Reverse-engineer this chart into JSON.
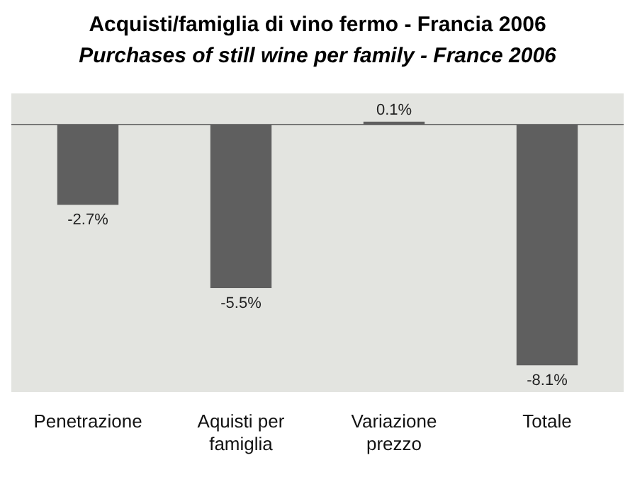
{
  "chart_data": {
    "type": "bar",
    "title": "Acquisti/famiglia di vino fermo - Francia 2006",
    "subtitle": "Purchases of still wine per family - France 2006",
    "categories": [
      "Penetrazione",
      "Aquisti per famiglia",
      "Variazione prezzo",
      "Totale"
    ],
    "values": [
      -2.7,
      -5.5,
      0.1,
      -8.1
    ],
    "color": "#5f5f5f",
    "ylim": [
      -9,
      1.05
    ],
    "data_labels": true,
    "value_labels": [
      "-2.7%",
      "-5.5%",
      "0.1%",
      "-8.1%"
    ]
  }
}
